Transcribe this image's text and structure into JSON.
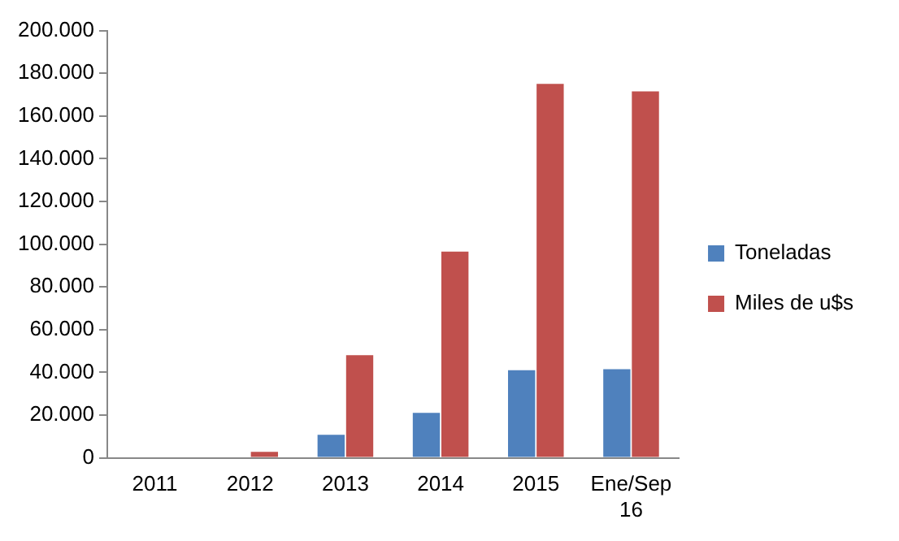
{
  "chart_data": {
    "type": "bar",
    "categories": [
      "2011",
      "2012",
      "2013",
      "2014",
      "2015",
      "Ene/Sep 16"
    ],
    "series": [
      {
        "name": "Toneladas",
        "color": "#4f81bd",
        "values": [
          null,
          null,
          10800,
          21000,
          41000,
          41500
        ]
      },
      {
        "name": "Miles de u$s",
        "color": "#c0504d",
        "values": [
          null,
          2800,
          48000,
          96500,
          175000,
          171500
        ]
      }
    ],
    "ylim": [
      0,
      200000
    ],
    "yticks": [
      {
        "value": 0,
        "label": "0"
      },
      {
        "value": 20000,
        "label": "20.000"
      },
      {
        "value": 40000,
        "label": "40.000"
      },
      {
        "value": 60000,
        "label": "60.000"
      },
      {
        "value": 80000,
        "label": "80.000"
      },
      {
        "value": 100000,
        "label": "100.000"
      },
      {
        "value": 120000,
        "label": "120.000"
      },
      {
        "value": 140000,
        "label": "140.000"
      },
      {
        "value": 160000,
        "label": "160.000"
      },
      {
        "value": 180000,
        "label": "180.000"
      },
      {
        "value": 200000,
        "label": "200.000"
      }
    ],
    "grid": false,
    "legend": "right"
  }
}
